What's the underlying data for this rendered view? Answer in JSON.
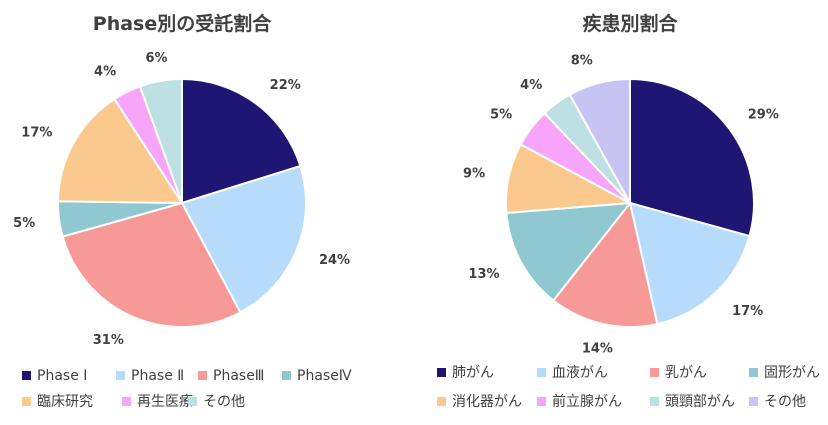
{
  "chart_data": [
    {
      "type": "pie",
      "title": "Phase別の受託割合",
      "categories": [
        "Phase Ⅰ",
        "Phase Ⅱ",
        "PhaseⅢ",
        "PhaseⅣ",
        "臨床研究",
        "再生医療",
        "その他"
      ],
      "values": [
        22,
        24,
        31,
        5,
        17,
        4,
        6
      ],
      "labels": [
        "22%",
        "24%",
        "31%",
        "5%",
        "17%",
        "4%",
        "6%"
      ],
      "colors": [
        "#1f1673",
        "#b7dbfb",
        "#f79a97",
        "#8fc8d0",
        "#fbc88e",
        "#f7a5f9",
        "#bde0e5"
      ],
      "legend_position": "bottom"
    },
    {
      "type": "pie",
      "title": "疾患別割合",
      "categories": [
        "肺がん",
        "血液がん",
        "乳がん",
        "固形がん",
        "消化器がん",
        "前立腺がん",
        "頭頸部がん",
        "その他"
      ],
      "values": [
        29,
        17,
        14,
        13,
        9,
        5,
        4,
        8
      ],
      "labels": [
        "29%",
        "17%",
        "14%",
        "13%",
        "9%",
        "5%",
        "4%",
        "8%"
      ],
      "colors": [
        "#1f1673",
        "#b7dbfb",
        "#f79a97",
        "#8fc8d0",
        "#fbc88e",
        "#f7a5f9",
        "#bde0e5",
        "#c7c3f2"
      ],
      "legend_position": "bottom"
    }
  ]
}
